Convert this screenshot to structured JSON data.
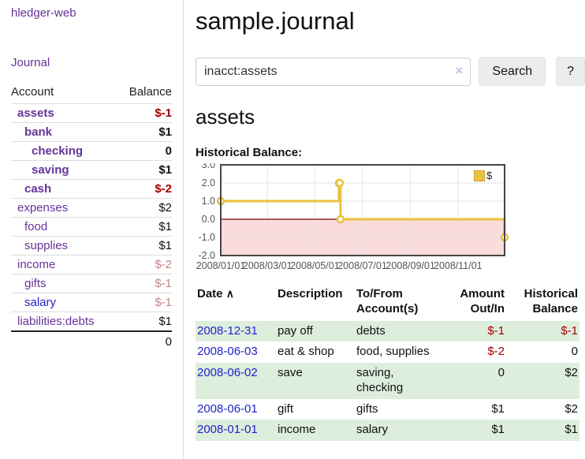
{
  "app": {
    "brand": "hledger-web",
    "nav_journal": "Journal"
  },
  "sidebar": {
    "table_headers": {
      "account": "Account",
      "balance": "Balance"
    },
    "accounts": [
      {
        "name": "assets",
        "balance": "$-1"
      },
      {
        "name": "bank",
        "balance": "$1"
      },
      {
        "name": "checking",
        "balance": "0"
      },
      {
        "name": "saving",
        "balance": "$1"
      },
      {
        "name": "cash",
        "balance": "$-2"
      },
      {
        "name": "expenses",
        "balance": "$2"
      },
      {
        "name": "food",
        "balance": "$1"
      },
      {
        "name": "supplies",
        "balance": "$1"
      },
      {
        "name": "income",
        "balance": "$-2"
      },
      {
        "name": "gifts",
        "balance": "$-1"
      },
      {
        "name": "salary",
        "balance": "$-1"
      },
      {
        "name": "liabilities:debts",
        "balance": "$1"
      }
    ],
    "total": "0"
  },
  "header": {
    "title": "sample.journal"
  },
  "search": {
    "value": "inacct:assets",
    "clear_icon": "×",
    "button_label": "Search",
    "help_label": "?"
  },
  "account_page": {
    "heading": "assets",
    "chart_label": "Historical Balance:"
  },
  "chart_data": {
    "type": "line",
    "title": "Historical Balance:",
    "x_type": "date",
    "xlim": [
      "2008-01-01",
      "2008-12-31"
    ],
    "ylim": [
      -2,
      3
    ],
    "x_ticks": [
      "2008/01/01",
      "2008/03/01",
      "2008/05/01",
      "2008/07/01",
      "2008/09/01",
      "2008/11/01"
    ],
    "y_ticks": [
      3.0,
      2.0,
      1.0,
      0.0,
      -1.0,
      -2.0
    ],
    "series": [
      {
        "name": "$",
        "color": "#e8c13e",
        "step": true,
        "points": [
          [
            "2008-01-01",
            1
          ],
          [
            "2008-06-01",
            2
          ],
          [
            "2008-06-02",
            2
          ],
          [
            "2008-06-03",
            0
          ],
          [
            "2008-12-31",
            -1
          ]
        ]
      }
    ],
    "legend_position": "top-right",
    "grid": true,
    "negative_region_fill": "#fbdcdc",
    "zero_line_color": "#800000",
    "plot_border_color": "#454545",
    "grid_color": "#e3e3e3",
    "tick_label_color": "#555555"
  },
  "register": {
    "columns": {
      "date": "Date",
      "description": "Description",
      "accounts": "To/From Account(s)",
      "amount": "Amount Out/In",
      "balance": "Historical Balance"
    },
    "sort_icon": "∧",
    "rows": [
      {
        "date": "2008-12-31",
        "description": "pay off",
        "accounts": "debts",
        "amount": "$-1",
        "balance": "$-1"
      },
      {
        "date": "2008-06-03",
        "description": "eat & shop",
        "accounts": "food, supplies",
        "amount": "$-2",
        "balance": "0"
      },
      {
        "date": "2008-06-02",
        "description": "save",
        "accounts": "saving, checking",
        "amount": "0",
        "balance": "$2"
      },
      {
        "date": "2008-06-01",
        "description": "gift",
        "accounts": "gifts",
        "amount": "$1",
        "balance": "$2"
      },
      {
        "date": "2008-01-01",
        "description": "income",
        "accounts": "salary",
        "amount": "$1",
        "balance": "$1"
      }
    ]
  },
  "colors": {
    "accent_purple": "#663399",
    "link_blue": "#2222cc",
    "negative": "#a40000",
    "negative_dim": "#c28585",
    "stripe_green": "#ddeedd",
    "series_gold": "#e8c13e"
  }
}
